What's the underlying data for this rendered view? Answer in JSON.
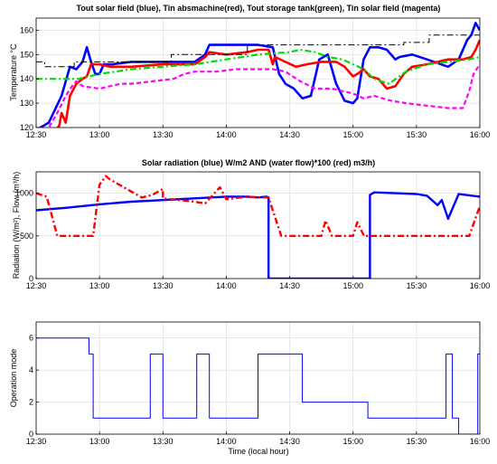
{
  "chart_data": [
    {
      "type": "line",
      "title": "Tout solar field (blue), Tin absmachine(red), Tout storage tank(green), Tin solar field (magenta)",
      "ylabel": "Temperature °C",
      "xlabel": "",
      "xlim": [
        "12:30",
        "16:00"
      ],
      "ylim": [
        120,
        165
      ],
      "xticks": [
        "12:30",
        "13:00",
        "13:30",
        "14:00",
        "14:30",
        "15:00",
        "15:30",
        "16:00"
      ],
      "yticks": [
        "120",
        "130",
        "140",
        "150",
        "160"
      ],
      "grid": true,
      "series": [
        {
          "color": "#0000ff",
          "style": "solid",
          "x": [
            "12:30",
            "12:36",
            "12:42",
            "12:46",
            "12:49",
            "12:52",
            "12:54",
            "12:56",
            "12:58",
            "13:00",
            "13:02",
            "13:06",
            "13:15",
            "13:30",
            "13:45",
            "13:50",
            "13:52",
            "14:00",
            "14:10",
            "14:15",
            "14:22",
            "14:25",
            "14:28",
            "14:32",
            "14:36",
            "14:40",
            "14:44",
            "14:48",
            "14:52",
            "14:56",
            "15:00",
            "15:02",
            "15:05",
            "15:08",
            "15:12",
            "15:16",
            "15:20",
            "15:22",
            "15:28",
            "15:35",
            "15:45",
            "15:50",
            "15:54",
            "15:56",
            "15:58",
            "16:00"
          ],
          "y": [
            119,
            122,
            133,
            145,
            144,
            147,
            153,
            147,
            142,
            142,
            146,
            146,
            147,
            147,
            147,
            150,
            154,
            154,
            154,
            154,
            153,
            142,
            138,
            136,
            132,
            133,
            148,
            150,
            138,
            131,
            130,
            132,
            148,
            153,
            153,
            152,
            148,
            149,
            150,
            148,
            145,
            148,
            156,
            158,
            163,
            160
          ]
        },
        {
          "color": "#ff0000",
          "style": "solid",
          "x": [
            "12:30",
            "12:39",
            "12:41",
            "12:42",
            "12:44",
            "12:46",
            "12:49",
            "12:52",
            "12:54",
            "12:56",
            "13:00",
            "13:05",
            "13:15",
            "13:30",
            "13:45",
            "13:50",
            "13:52",
            "14:00",
            "14:10",
            "14:15",
            "14:20",
            "14:22",
            "14:23",
            "14:28",
            "14:33",
            "14:38",
            "14:45",
            "14:52",
            "14:56",
            "15:00",
            "15:02",
            "15:05",
            "15:08",
            "15:12",
            "15:16",
            "15:20",
            "15:24",
            "15:28",
            "15:35",
            "15:45",
            "15:52",
            "15:56",
            "15:58",
            "16:00"
          ],
          "y": [
            118,
            118,
            121,
            126,
            122,
            133,
            138,
            140,
            141,
            146,
            146,
            145,
            145,
            146,
            146,
            149,
            151,
            150,
            151,
            152,
            152,
            146,
            149,
            147,
            145,
            146,
            147,
            147,
            145,
            141,
            142,
            144,
            141,
            140,
            136,
            137,
            142,
            145,
            146,
            148,
            148,
            149,
            152,
            156
          ]
        },
        {
          "color": "#00dd00",
          "style": "dashdot",
          "x": [
            "12:30",
            "12:40",
            "12:50",
            "13:00",
            "13:15",
            "13:30",
            "13:45",
            "14:00",
            "14:15",
            "14:30",
            "14:35",
            "14:42",
            "14:48",
            "14:55",
            "15:00",
            "15:05",
            "15:10",
            "15:17",
            "15:25",
            "15:35",
            "15:45",
            "15:55",
            "16:00"
          ],
          "y": [
            140,
            140,
            140,
            142,
            144,
            145,
            146,
            148,
            150,
            151,
            152,
            151,
            149,
            148,
            146,
            144,
            140,
            138,
            143,
            146,
            147,
            148,
            149
          ]
        },
        {
          "color": "#ff00ff",
          "style": "dashed",
          "x": [
            "12:30",
            "12:36",
            "12:40",
            "12:44",
            "12:47",
            "12:49",
            "12:52",
            "13:00",
            "13:10",
            "13:15",
            "13:25",
            "13:35",
            "13:40",
            "13:45",
            "13:55",
            "14:05",
            "14:15",
            "14:22",
            "14:28",
            "14:35",
            "14:42",
            "14:50",
            "15:00",
            "15:05",
            "15:10",
            "15:18",
            "15:25",
            "15:35",
            "15:45",
            "15:52",
            "15:55",
            "15:57",
            "16:00"
          ],
          "y": [
            118,
            120,
            126,
            133,
            137,
            139,
            137,
            136,
            138,
            138,
            139,
            140,
            142,
            143,
            143,
            144,
            144,
            144,
            143,
            139,
            136,
            136,
            134,
            132,
            133,
            131,
            130,
            129,
            128,
            128,
            135,
            142,
            146
          ]
        },
        {
          "color": "#000000",
          "style": "dashdot",
          "x": [
            "12:30",
            "12:34",
            "12:34",
            "12:48",
            "12:48",
            "13:34",
            "13:34",
            "14:10",
            "14:10",
            "15:24",
            "15:24",
            "15:36",
            "15:36",
            "16:00"
          ],
          "y": [
            147,
            147,
            145,
            145,
            147,
            147,
            150,
            150,
            154,
            154,
            155,
            155,
            158,
            158
          ]
        }
      ]
    },
    {
      "type": "line",
      "title": "Solar radiation (blue) W/m2 AND (water flow)*100 (red) m3/h)",
      "ylabel": "Radiation (W/m²), Flow (m³/h)",
      "xlabel": "",
      "xlim": [
        "12:30",
        "16:00"
      ],
      "ylim": [
        0,
        1250
      ],
      "xticks": [
        "12:30",
        "13:00",
        "13:30",
        "14:00",
        "14:30",
        "15:00",
        "15:30",
        "16:00"
      ],
      "yticks": [
        "0",
        "500",
        "1000"
      ],
      "grid": true,
      "series": [
        {
          "color": "#0000ff",
          "style": "solid",
          "x": [
            "12:30",
            "12:45",
            "13:00",
            "13:15",
            "13:30",
            "13:45",
            "14:00",
            "14:10",
            "14:15",
            "14:19",
            "14:20",
            "14:20",
            "15:08",
            "15:08",
            "15:10",
            "15:20",
            "15:30",
            "15:35",
            "15:40",
            "15:42",
            "15:45",
            "15:50",
            "16:00"
          ],
          "y": [
            800,
            830,
            870,
            900,
            920,
            940,
            960,
            960,
            950,
            960,
            950,
            0,
            0,
            980,
            1010,
            1000,
            990,
            970,
            860,
            920,
            700,
            990,
            960
          ]
        },
        {
          "color": "#ff0000",
          "style": "dashdot",
          "x": [
            "12:30",
            "12:35",
            "12:40",
            "12:40",
            "12:57",
            "13:00",
            "13:03",
            "13:05",
            "13:20",
            "13:25",
            "13:30",
            "13:30",
            "13:45",
            "13:50",
            "13:57",
            "14:00",
            "14:10",
            "14:15",
            "14:20",
            "14:26",
            "14:28",
            "14:45",
            "14:47",
            "14:50",
            "15:00",
            "15:02",
            "15:05",
            "15:05",
            "15:55",
            "16:00"
          ],
          "y": [
            1000,
            960,
            500,
            500,
            500,
            1100,
            1200,
            1160,
            950,
            980,
            1050,
            940,
            900,
            880,
            1070,
            930,
            960,
            950,
            950,
            500,
            500,
            500,
            680,
            500,
            500,
            660,
            510,
            500,
            500,
            850
          ]
        }
      ]
    },
    {
      "type": "line",
      "title": "",
      "ylabel": "Operation mode",
      "xlabel": "Time (local hour)",
      "xlim": [
        "12:30",
        "16:00"
      ],
      "ylim": [
        0,
        7
      ],
      "xticks": [
        "12:30",
        "13:00",
        "13:30",
        "14:00",
        "14:30",
        "15:00",
        "15:30",
        "16:00"
      ],
      "yticks": [
        "0",
        "2",
        "4",
        "6"
      ],
      "grid": true,
      "series": [
        {
          "color": "#0000ff",
          "style": "solid",
          "x": [
            "12:30",
            "12:55",
            "12:55",
            "12:57",
            "12:57",
            "13:24",
            "13:24",
            "13:30",
            "13:30",
            "13:46",
            "13:46",
            "13:52",
            "13:52",
            "14:15",
            "14:15",
            "14:36",
            "14:36",
            "15:07",
            "15:07",
            "15:44",
            "15:44",
            "15:47",
            "15:47",
            "15:50",
            "15:50",
            "15:59",
            "15:59",
            "16:00"
          ],
          "y": [
            6,
            6,
            5,
            5,
            1,
            1,
            5,
            5,
            1,
            1,
            5,
            5,
            1,
            1,
            5,
            5,
            2,
            2,
            1,
            1,
            5,
            5,
            1,
            1,
            0,
            0,
            5,
            5
          ]
        }
      ]
    }
  ]
}
